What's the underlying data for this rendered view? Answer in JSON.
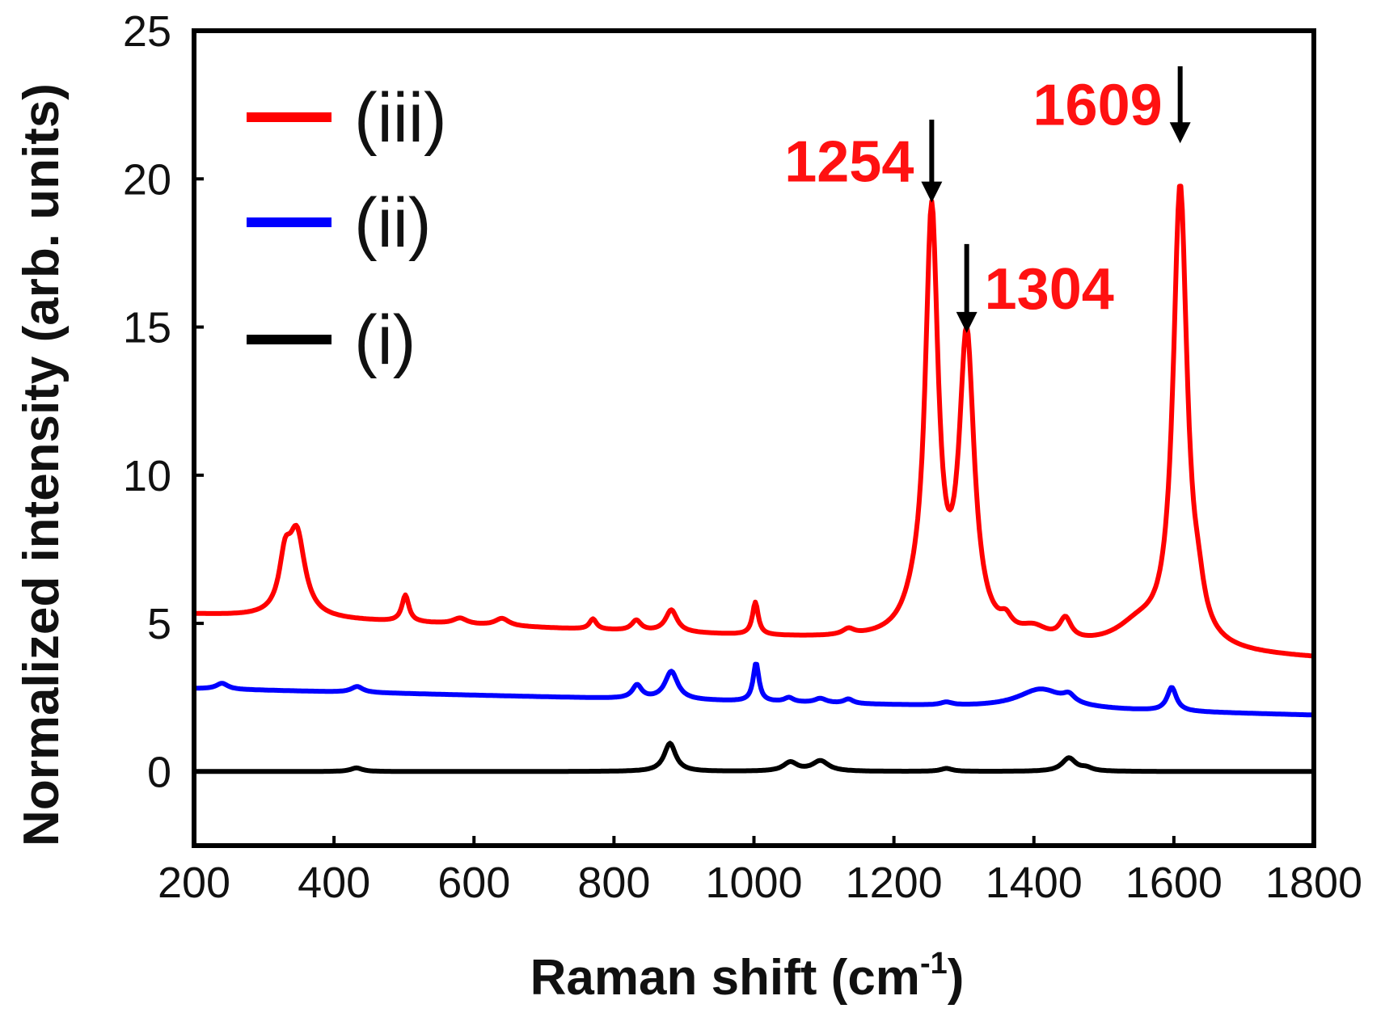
{
  "chart_data": {
    "type": "line",
    "title": "",
    "xlabel": "Raman shift  (cm",
    "xlabel_sup": "-1",
    "xlabel_close": ")",
    "ylabel": "Normalized intensity (arb. units)",
    "xlim": [
      200,
      1800
    ],
    "ylim": [
      -2.5,
      25
    ],
    "xticks": [
      200,
      400,
      600,
      800,
      1000,
      1200,
      1400,
      1600,
      1800
    ],
    "yticks": [
      0,
      5,
      10,
      15,
      20,
      25
    ],
    "grid": false,
    "legend_position": "top-left",
    "series": [
      {
        "name": "(iii)",
        "color": "#ff0000",
        "baseline_start": 5.3,
        "baseline_end": 3.8,
        "peaks": [
          {
            "x": 330,
            "h": 1.6,
            "w": 10
          },
          {
            "x": 347,
            "h": 2.7,
            "w": 14
          },
          {
            "x": 502,
            "h": 0.9,
            "w": 6
          },
          {
            "x": 580,
            "h": 0.2,
            "w": 12
          },
          {
            "x": 640,
            "h": 0.25,
            "w": 12
          },
          {
            "x": 770,
            "h": 0.35,
            "w": 6
          },
          {
            "x": 832,
            "h": 0.35,
            "w": 8
          },
          {
            "x": 882,
            "h": 0.75,
            "w": 10
          },
          {
            "x": 1002,
            "h": 1.1,
            "w": 5
          },
          {
            "x": 1135,
            "h": 0.2,
            "w": 10
          },
          {
            "x": 1230,
            "h": 0.6,
            "w": 20
          },
          {
            "x": 1254,
            "h": 14.0,
            "w": 11
          },
          {
            "x": 1304,
            "h": 10.0,
            "w": 13
          },
          {
            "x": 1360,
            "h": 0.4,
            "w": 10
          },
          {
            "x": 1400,
            "h": 0.4,
            "w": 25
          },
          {
            "x": 1445,
            "h": 0.7,
            "w": 10
          },
          {
            "x": 1550,
            "h": 0.7,
            "w": 40
          },
          {
            "x": 1609,
            "h": 15.5,
            "w": 12
          },
          {
            "x": 1635,
            "h": 0.9,
            "w": 10
          }
        ]
      },
      {
        "name": "(ii)",
        "color": "#0000ff",
        "baseline_start": 2.8,
        "baseline_end": 1.9,
        "peaks": [
          {
            "x": 240,
            "h": 0.2,
            "w": 10
          },
          {
            "x": 433,
            "h": 0.2,
            "w": 10
          },
          {
            "x": 833,
            "h": 0.45,
            "w": 8
          },
          {
            "x": 882,
            "h": 0.95,
            "w": 11
          },
          {
            "x": 1003,
            "h": 1.3,
            "w": 5
          },
          {
            "x": 1050,
            "h": 0.15,
            "w": 8
          },
          {
            "x": 1095,
            "h": 0.15,
            "w": 10
          },
          {
            "x": 1135,
            "h": 0.15,
            "w": 8
          },
          {
            "x": 1275,
            "h": 0.1,
            "w": 10
          },
          {
            "x": 1410,
            "h": 0.65,
            "w": 40
          },
          {
            "x": 1450,
            "h": 0.25,
            "w": 10
          },
          {
            "x": 1597,
            "h": 0.8,
            "w": 8
          }
        ]
      },
      {
        "name": "(i)",
        "color": "#000000",
        "baseline_start": 0,
        "baseline_end": 0,
        "peaks": [
          {
            "x": 432,
            "h": 0.12,
            "w": 10
          },
          {
            "x": 880,
            "h": 0.95,
            "w": 10
          },
          {
            "x": 1052,
            "h": 0.3,
            "w": 12
          },
          {
            "x": 1095,
            "h": 0.35,
            "w": 14
          },
          {
            "x": 1275,
            "h": 0.1,
            "w": 10
          },
          {
            "x": 1450,
            "h": 0.45,
            "w": 12
          },
          {
            "x": 1475,
            "h": 0.1,
            "w": 10
          }
        ]
      }
    ],
    "annotations": [
      {
        "label": "1254",
        "x": 1254,
        "y_tip": 19.2,
        "y_tail": 22.0,
        "color": "#ff1111",
        "side": "left"
      },
      {
        "label": "1304",
        "x": 1304,
        "y_tip": 14.8,
        "y_tail": 17.8,
        "color": "#ff1111",
        "side": "right"
      },
      {
        "label": "1609",
        "x": 1609,
        "y_tip": 21.2,
        "y_tail": 23.8,
        "color": "#ff1111",
        "side": "left"
      }
    ]
  }
}
